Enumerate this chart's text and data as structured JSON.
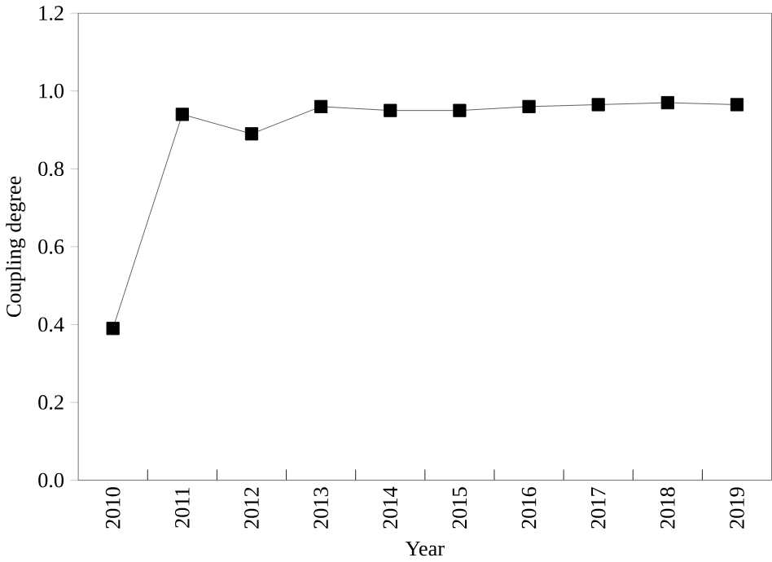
{
  "chart_data": {
    "type": "line",
    "xlabel": "Year",
    "ylabel": "Coupling degree",
    "categories": [
      "2010",
      "2011",
      "2012",
      "2013",
      "2014",
      "2015",
      "2016",
      "2017",
      "2018",
      "2019"
    ],
    "series": [
      {
        "color": "#000000",
        "values": [
          0.39,
          0.94,
          0.89,
          0.96,
          0.95,
          0.95,
          0.96,
          0.965,
          0.97,
          0.965
        ]
      }
    ],
    "ylim": [
      0,
      1.2
    ],
    "yticks": [
      {
        "value": 0,
        "label": "0.0"
      },
      0.2,
      0.4,
      0.6,
      0.8,
      {
        "value": 1,
        "label": "1.0"
      },
      1.2
    ],
    "marker": "square",
    "line_style": "solid",
    "grid": false
  }
}
